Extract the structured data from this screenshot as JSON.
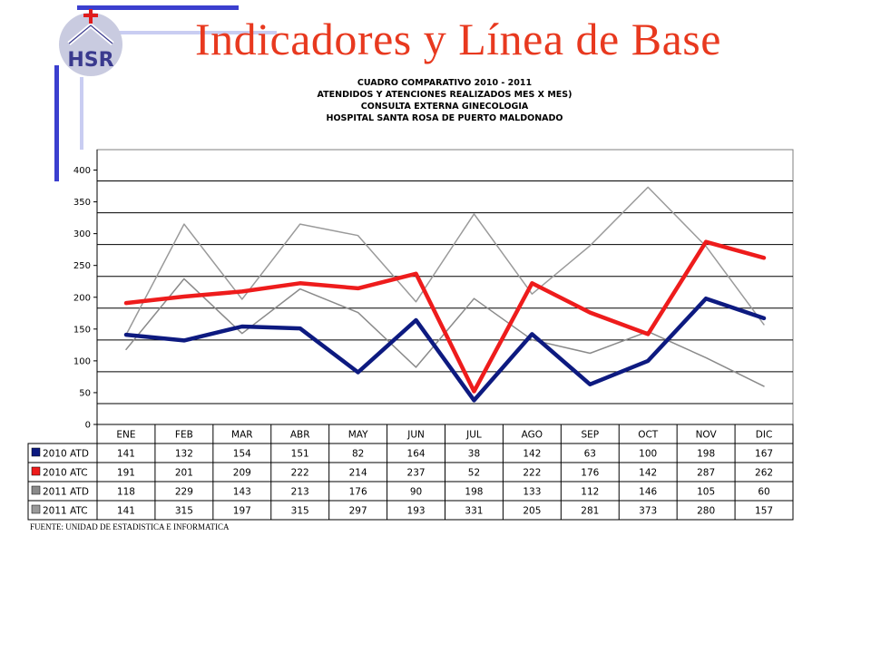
{
  "slide": {
    "title": "Indicadores y Línea de Base",
    "logo_text": "HSR",
    "source": "FUENTE: UNIDAD DE ESTADISTICA E INFORMATICA"
  },
  "chart_data": {
    "type": "line",
    "title": "CUADRO COMPARATIVO 2010 - 2011",
    "subtitles": [
      "ATENDIDOS Y ATENCIONES  REALIZADOS MES X MES)",
      "CONSULTA EXTERNA GINECOLOGIA",
      "HOSPITAL  SANTA ROSA DE PUERTO MALDONADO"
    ],
    "categories": [
      "ENE",
      "FEB",
      "MAR",
      "ABR",
      "MAY",
      "JUN",
      "JUL",
      "AGO",
      "SEP",
      "OCT",
      "NOV",
      "DIC"
    ],
    "ylim": [
      0,
      400
    ],
    "yticks": [
      0,
      50,
      100,
      150,
      200,
      250,
      300,
      350,
      400
    ],
    "grid": true,
    "legend": "data-table",
    "series": [
      {
        "name": "2010 ATD",
        "color": "#0d1a80",
        "values": [
          141,
          132,
          154,
          151,
          82,
          164,
          38,
          142,
          63,
          100,
          198,
          167
        ]
      },
      {
        "name": "2010 ATC",
        "color": "#ee1c1c",
        "values": [
          191,
          201,
          209,
          222,
          214,
          237,
          52,
          222,
          176,
          142,
          287,
          262
        ]
      },
      {
        "name": "2011 ATD",
        "color": "#8a8a8a",
        "values": [
          118,
          229,
          143,
          213,
          176,
          90,
          198,
          133,
          112,
          146,
          105,
          60
        ]
      },
      {
        "name": "2011 ATC",
        "color": "#9a9a9a",
        "values": [
          141,
          315,
          197,
          315,
          297,
          193,
          331,
          205,
          281,
          373,
          280,
          157
        ]
      }
    ]
  }
}
